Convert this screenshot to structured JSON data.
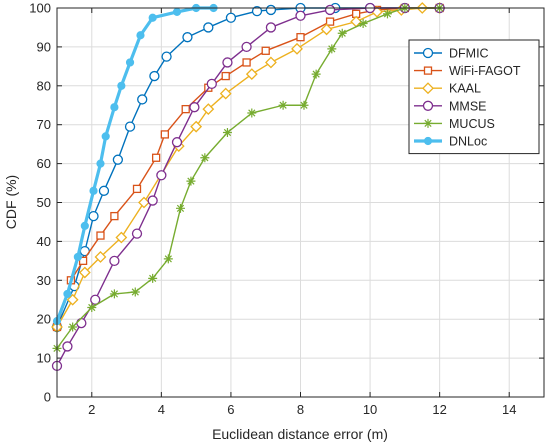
{
  "chart_data": {
    "type": "line",
    "title": "",
    "xlabel": "Euclidean distance error (m)",
    "ylabel": "CDF (%)",
    "xlim": [
      1,
      15
    ],
    "ylim": [
      0,
      100
    ],
    "xticks": [
      2,
      4,
      6,
      8,
      10,
      12,
      14
    ],
    "yticks": [
      0,
      10,
      20,
      30,
      40,
      50,
      60,
      70,
      80,
      90,
      100
    ],
    "grid": true,
    "legend_position": "right",
    "series": [
      {
        "name": "DFMIC",
        "color": "#0072BD",
        "marker": "circle",
        "x": [
          1.0,
          1.5,
          1.8,
          2.05,
          2.35,
          2.75,
          3.1,
          3.45,
          3.8,
          4.15,
          4.75,
          5.35,
          6.0,
          6.75,
          7.15,
          8.0,
          9.0,
          10.0,
          11.0,
          12.0
        ],
        "y": [
          18,
          28.5,
          37.5,
          46.5,
          53,
          61,
          69.5,
          76.5,
          82.5,
          87.5,
          92.5,
          95,
          97.5,
          99.2,
          99.5,
          100,
          100,
          100,
          100,
          100
        ]
      },
      {
        "name": "WiFi-FAGOT",
        "color": "#D95319",
        "marker": "square",
        "x": [
          1.0,
          1.4,
          1.75,
          2.25,
          2.65,
          3.3,
          3.85,
          4.1,
          4.7,
          5.35,
          5.85,
          6.45,
          7.0,
          8.0,
          8.85,
          9.6,
          10.2,
          11.0,
          12.0
        ],
        "y": [
          18,
          30,
          35,
          41.5,
          46.5,
          53.5,
          61.5,
          67.5,
          74,
          79.5,
          82.5,
          86,
          89,
          92.5,
          96.5,
          98.5,
          99.5,
          100,
          100
        ]
      },
      {
        "name": "KAAL",
        "color": "#EDB120",
        "marker": "diamond",
        "x": [
          1.0,
          1.45,
          1.8,
          2.25,
          2.85,
          3.5,
          4.5,
          5.0,
          5.35,
          5.85,
          6.6,
          7.15,
          7.9,
          8.75,
          9.6,
          10.2,
          10.9,
          11.5,
          12.0
        ],
        "y": [
          18,
          25,
          32,
          36,
          41,
          50,
          64.5,
          69.5,
          74,
          78,
          83,
          86,
          89.5,
          94.5,
          96.5,
          99,
          99.5,
          100,
          100
        ]
      },
      {
        "name": "MMSE",
        "color": "#7E2F8E",
        "marker": "circle",
        "x": [
          1.0,
          1.3,
          1.7,
          2.1,
          2.65,
          3.3,
          3.75,
          4.0,
          4.45,
          4.95,
          5.45,
          5.9,
          6.45,
          7.15,
          8.0,
          8.85,
          10.0,
          11.0,
          12.0
        ],
        "y": [
          8,
          13,
          19,
          25,
          35,
          42,
          50.5,
          57,
          65.5,
          74.5,
          80.5,
          86,
          90,
          95,
          98,
          99.5,
          100,
          100,
          100
        ]
      },
      {
        "name": "MUCUS",
        "color": "#77AC30",
        "marker": "asterisk",
        "x": [
          1.0,
          1.45,
          2.0,
          2.65,
          3.25,
          3.75,
          4.2,
          4.55,
          4.85,
          5.25,
          5.9,
          6.6,
          7.5,
          8.1,
          8.45,
          8.9,
          9.2,
          9.8,
          10.5,
          11.0,
          12.0
        ],
        "y": [
          12.5,
          18,
          23,
          26.5,
          27,
          30.5,
          35.5,
          48.5,
          55.5,
          61.5,
          68,
          73,
          75,
          75,
          83,
          89.5,
          93.5,
          96,
          98.5,
          100,
          100
        ]
      },
      {
        "name": "DNLoc",
        "color": "#4DBEEE",
        "marker": "filled-circle",
        "x": [
          1.0,
          1.3,
          1.6,
          1.8,
          2.05,
          2.25,
          2.4,
          2.65,
          2.85,
          3.1,
          3.4,
          3.75,
          4.45,
          5.0,
          5.5
        ],
        "y": [
          19.5,
          26.5,
          36,
          44,
          53,
          60,
          67,
          74.5,
          80,
          86,
          93,
          97.5,
          99,
          100,
          100
        ]
      }
    ]
  }
}
